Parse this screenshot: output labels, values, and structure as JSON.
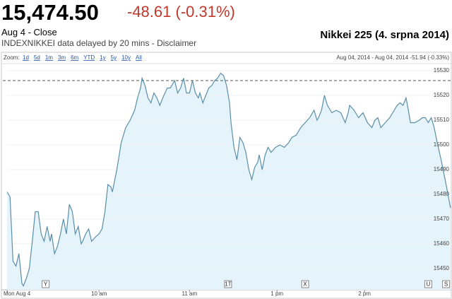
{
  "header": {
    "price": "15,474.50",
    "change": "-48.61 (-0.31%)",
    "status": "Aug 4 - Close",
    "note": "INDEXNIKKEI data delayed by 20 mins - Disclaimer"
  },
  "toolbar": {
    "label": "Zoom:",
    "ranges": [
      "1d",
      "5d",
      "1m",
      "3m",
      "6m",
      "YTD",
      "1y",
      "5y",
      "10y",
      "All"
    ],
    "info": "Aug 04, 2014 - Aug 04, 2014 -51.94 (-0.33%)"
  },
  "chart_data": {
    "type": "area",
    "title": "Nikkei 225 (4. srpna 2014)",
    "color": "#5a8ea8",
    "fill": "#e5f3fa",
    "x": [
      0,
      2,
      4,
      6,
      8,
      10,
      11,
      13,
      15,
      17,
      19,
      21,
      23,
      25,
      27,
      29,
      30,
      32,
      34,
      36,
      38,
      40,
      42,
      44,
      46,
      48,
      50,
      51,
      53,
      55,
      57,
      60,
      62,
      64,
      66,
      68,
      70,
      71,
      74,
      77,
      80,
      83,
      86,
      88,
      90,
      91,
      93,
      95,
      97,
      99,
      101,
      103,
      105,
      108,
      110,
      113,
      115,
      117,
      119,
      121,
      123,
      125,
      127,
      129,
      130,
      132,
      134,
      136,
      138,
      140,
      142,
      144,
      146,
      148,
      150,
      151,
      153,
      155,
      157,
      159,
      161,
      163,
      165,
      167,
      169,
      170,
      172,
      174,
      176,
      178,
      181,
      184,
      187,
      190,
      192,
      195,
      198,
      201,
      204,
      207,
      209,
      210,
      212,
      214,
      216,
      219,
      222,
      225,
      228,
      230,
      231,
      234,
      237,
      240,
      243,
      246,
      248,
      250,
      252,
      255,
      258,
      261,
      263,
      265,
      267,
      269,
      270,
      272,
      275,
      278,
      280,
      282,
      284,
      286,
      288,
      290,
      293,
      296,
      299
    ],
    "values": [
      15481,
      15479,
      15453,
      15451,
      15456,
      15444,
      15443,
      15446,
      15450,
      15461,
      15473,
      15473,
      15464,
      15461,
      15467,
      15461,
      15464,
      15456,
      15459,
      15464,
      15470,
      15464,
      15476,
      15473,
      15464,
      15467,
      15460,
      15461,
      15464,
      15466,
      15461,
      15463,
      15464,
      15466,
      15473,
      15484,
      15483,
      15481,
      15490,
      15501,
      15507,
      15510,
      15514,
      15519,
      15523,
      15527,
      15524,
      15519,
      15517,
      15521,
      15519,
      15516,
      15519,
      15523,
      15523,
      15526,
      15521,
      15523,
      15527,
      15521,
      15521,
      15526,
      15521,
      15519,
      15521,
      15517,
      15520,
      15523,
      15524,
      15526,
      15527,
      15529,
      15528,
      15524,
      15517,
      15509,
      15499,
      15494,
      15503,
      15501,
      15497,
      15490,
      15486,
      15491,
      15493,
      15496,
      15490,
      15496,
      15499,
      15497,
      15499,
      15500,
      15499,
      15501,
      15503,
      15504,
      15507,
      15509,
      15511,
      15514,
      15510,
      15511,
      15514,
      15520,
      15516,
      15513,
      15514,
      15513,
      15509,
      15513,
      15516,
      15514,
      15511,
      15513,
      15509,
      15507,
      15510,
      15511,
      15507,
      15509,
      15511,
      15514,
      15516,
      15517,
      15516,
      15519,
      15516,
      15509,
      15509,
      15510,
      15511,
      15511,
      15509,
      15511,
      15507,
      15501,
      15493,
      15484,
      15474.5
    ],
    "reference_line": 15526,
    "xlim": [
      0,
      300
    ],
    "xticks": [
      {
        "value": 0,
        "label": "Mon Aug 4"
      },
      {
        "value": 62,
        "label": "10 am"
      },
      {
        "value": 123,
        "label": "11 am"
      },
      {
        "value": 182,
        "label": "1 pm"
      },
      {
        "value": 241,
        "label": "2 pm"
      }
    ],
    "ylim": [
      15441.4,
      15532.3
    ],
    "yticks": [
      15450,
      15460,
      15470,
      15480,
      15490,
      15500,
      15510,
      15520,
      15530
    ],
    "annotations": [
      {
        "x": 26,
        "label": "Y"
      },
      {
        "x": 149,
        "label": "1T"
      },
      {
        "x": 201,
        "label": "X"
      },
      {
        "x": 284,
        "label": "U"
      },
      {
        "x": 296,
        "label": "S"
      }
    ]
  }
}
